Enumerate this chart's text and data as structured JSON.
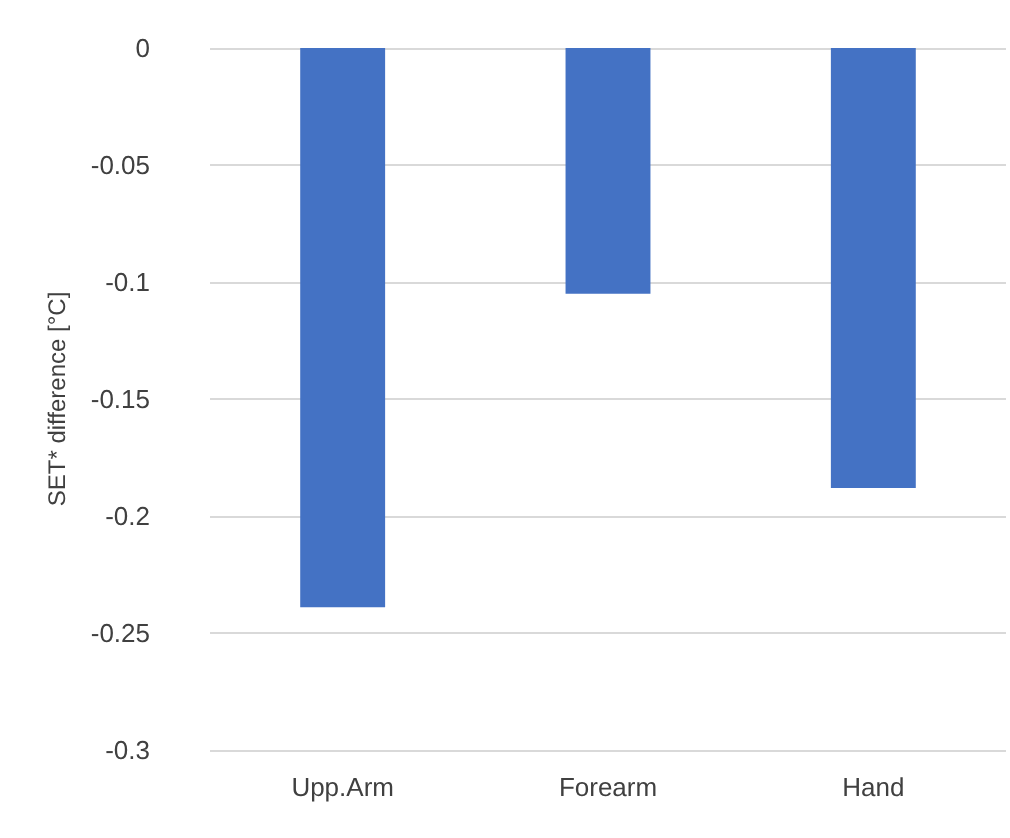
{
  "chart_data": {
    "type": "bar",
    "ylabel": "SET* difference [°C]",
    "categories": [
      "Upp.Arm",
      "Forearm",
      "Hand"
    ],
    "values": [
      -0.239,
      -0.105,
      -0.188
    ],
    "color": "#4472c4",
    "ylim": [
      -0.3,
      0
    ],
    "yticks": [
      -0.3,
      -0.25,
      -0.2,
      -0.15,
      -0.1,
      -0.05,
      0
    ],
    "grid": "y"
  }
}
